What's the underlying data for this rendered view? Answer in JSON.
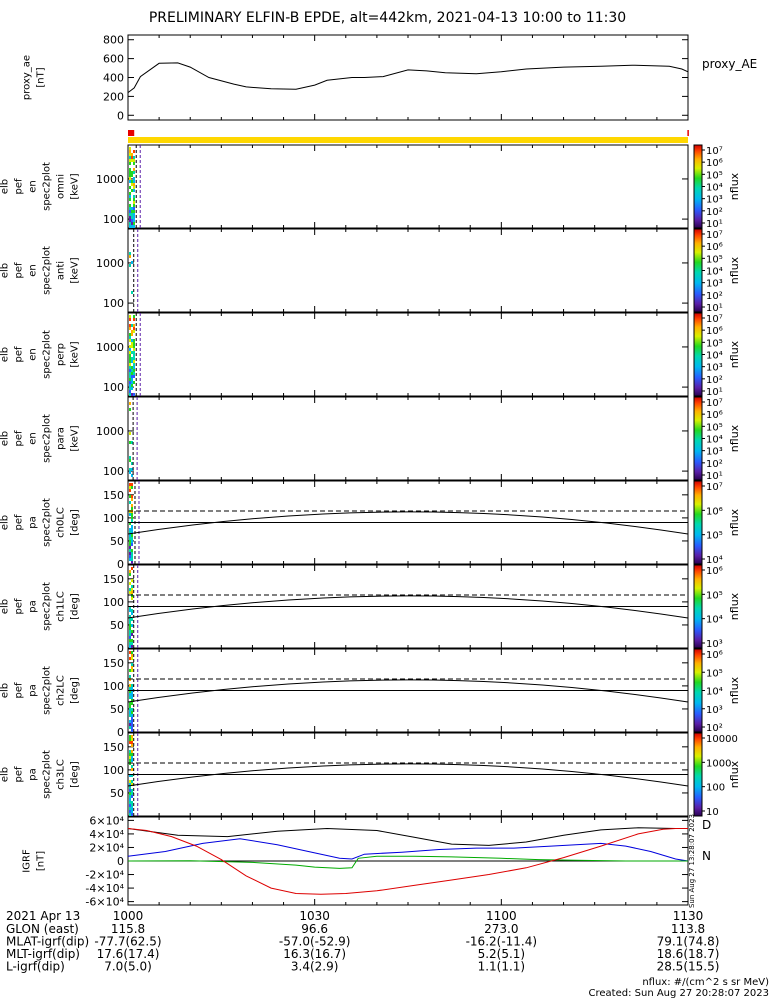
{
  "title": "PRELIMINARY ELFIN-B EPDE, alt=442km, 2021-04-13 10:00 to 11:30",
  "chart_data": [
    {
      "type": "line",
      "panel": "proxy_ae",
      "ylabel": [
        "proxy_ae",
        "[nT]"
      ],
      "legend": "proxy_AE",
      "ylim": [
        -50,
        850
      ],
      "yticks": [
        0,
        200,
        400,
        600,
        800
      ],
      "x": [
        0,
        1,
        2,
        5,
        8,
        10,
        13,
        17,
        19,
        23,
        27,
        30,
        32,
        36,
        38,
        41,
        45,
        48,
        51,
        56,
        60,
        64,
        70,
        76,
        81,
        87,
        89,
        90
      ],
      "y": [
        240,
        290,
        410,
        550,
        555,
        510,
        400,
        330,
        300,
        280,
        275,
        320,
        370,
        400,
        400,
        410,
        480,
        470,
        450,
        440,
        460,
        490,
        510,
        520,
        530,
        520,
        490,
        460
      ],
      "xrange": [
        0,
        90
      ]
    },
    {
      "type": "bar",
      "panel": "status-bar",
      "segments": [
        {
          "start": 0,
          "end": 90,
          "color": "#ffd700"
        },
        {
          "start": 0,
          "end": 1.0,
          "color": "#e60000"
        },
        {
          "start": 89.9,
          "end": 90,
          "color": "#e60000"
        }
      ]
    },
    {
      "type": "heatmap",
      "panel": "omni",
      "ylabel": [
        "elb",
        "pef",
        "en",
        "spec2plot",
        "omni",
        "[keV]"
      ],
      "ylog": true,
      "ylim": [
        60,
        7000
      ],
      "yticks": [
        100,
        1000
      ],
      "colorbar": {
        "label": "nflux",
        "ticks": [
          "10⁷",
          "10⁶",
          "10⁵",
          "10⁴",
          "10³",
          "10²",
          "10¹"
        ]
      },
      "xrange": [
        0,
        1.0
      ]
    },
    {
      "type": "heatmap",
      "panel": "anti",
      "ylabel": [
        "elb",
        "pef",
        "en",
        "spec2plot",
        "anti",
        "[keV]"
      ],
      "ylog": true,
      "ylim": [
        60,
        7000
      ],
      "yticks": [
        100,
        1000
      ],
      "colorbar": {
        "label": "nflux",
        "ticks": [
          "10⁷",
          "10⁶",
          "10⁵",
          "10⁴",
          "10³",
          "10²",
          "10¹"
        ]
      },
      "xrange": [
        0,
        0.6
      ]
    },
    {
      "type": "heatmap",
      "panel": "perp",
      "ylabel": [
        "elb",
        "pef",
        "en",
        "spec2plot",
        "perp",
        "[keV]"
      ],
      "ylog": true,
      "ylim": [
        60,
        7000
      ],
      "yticks": [
        100,
        1000
      ],
      "colorbar": {
        "label": "nflux",
        "ticks": [
          "10⁷",
          "10⁶",
          "10⁵",
          "10⁴",
          "10³",
          "10²",
          "10¹"
        ]
      },
      "xrange": [
        0,
        1.0
      ]
    },
    {
      "type": "heatmap",
      "panel": "para",
      "ylabel": [
        "elb",
        "pef",
        "en",
        "spec2plot",
        "para",
        "[keV]"
      ],
      "ylog": true,
      "ylim": [
        60,
        7000
      ],
      "yticks": [
        100,
        1000
      ],
      "colorbar": {
        "label": "nflux",
        "ticks": [
          "10⁷",
          "10⁶",
          "10⁵",
          "10⁴",
          "10³",
          "10²",
          "10¹"
        ]
      },
      "xrange": [
        0,
        0.5
      ]
    },
    {
      "type": "heatmap",
      "panel": "ch0LC",
      "ylabel": [
        "elb",
        "pef",
        "pa",
        "spec2plot",
        "ch0LC",
        "[deg]"
      ],
      "ylim": [
        0,
        180
      ],
      "yticks": [
        0,
        50,
        100,
        150
      ],
      "colorbar": {
        "label": "nflux",
        "ticks": [
          "10⁷",
          "10⁶",
          "10⁵",
          "10⁴"
        ]
      },
      "xrange": [
        0,
        0.8
      ],
      "lines": {
        "solid_a": [
          90,
          90
        ],
        "dashed": [
          115,
          115
        ],
        "curve": [
          65,
          113,
          65
        ]
      }
    },
    {
      "type": "heatmap",
      "panel": "ch1LC",
      "ylabel": [
        "elb",
        "pef",
        "pa",
        "spec2plot",
        "ch1LC",
        "[deg]"
      ],
      "ylim": [
        0,
        180
      ],
      "yticks": [
        0,
        50,
        100,
        150
      ],
      "colorbar": {
        "label": "nflux",
        "ticks": [
          "10⁶",
          "10⁵",
          "10⁴",
          "10³"
        ]
      },
      "xrange": [
        0,
        0.6
      ],
      "lines": {
        "solid_a": [
          90,
          90
        ],
        "dashed": [
          115,
          115
        ],
        "curve": [
          65,
          113,
          65
        ]
      }
    },
    {
      "type": "heatmap",
      "panel": "ch2LC",
      "ylabel": [
        "elb",
        "pef",
        "pa",
        "spec2plot",
        "ch2LC",
        "[deg]"
      ],
      "ylim": [
        0,
        180
      ],
      "yticks": [
        0,
        50,
        100,
        150
      ],
      "colorbar": {
        "label": "nflux",
        "ticks": [
          "10⁶",
          "10⁵",
          "10⁴",
          "10³",
          "10²"
        ]
      },
      "xrange": [
        0,
        0.6
      ],
      "lines": {
        "solid_a": [
          90,
          90
        ],
        "dashed": [
          115,
          115
        ],
        "curve": [
          65,
          113,
          65
        ]
      }
    },
    {
      "type": "heatmap",
      "panel": "ch3LC",
      "ylabel": [
        "elb",
        "pef",
        "pa",
        "spec2plot",
        "ch3LC",
        "[deg]"
      ],
      "ylim": [
        0,
        180
      ],
      "yticks": [
        50,
        100,
        150
      ],
      "colorbar": {
        "label": "nflux",
        "ticks": [
          "10000",
          "1000",
          "100",
          "10"
        ]
      },
      "xrange": [
        0,
        0.6
      ],
      "lines": {
        "solid_a": [
          90,
          90
        ],
        "dashed": [
          115,
          115
        ],
        "curve": [
          65,
          113,
          65
        ]
      }
    },
    {
      "type": "line",
      "panel": "IGRF",
      "ylabel": [
        "IGRF",
        "[nT]"
      ],
      "ylim": [
        -65000,
        65000
      ],
      "yticks": [
        "-6×10⁴",
        "-4×10⁴",
        "-2×10⁴",
        "0",
        "2×10⁴",
        "4×10⁴",
        "6×10⁴"
      ],
      "ytick_values": [
        -60000,
        -40000,
        -20000,
        0,
        20000,
        40000,
        60000
      ],
      "legend": [
        "D",
        "N"
      ],
      "side_note": "Sun Aug 27 13:28:07 2023",
      "series": [
        {
          "color": "#000000",
          "x": [
            0,
            8,
            16,
            24,
            32,
            40,
            46,
            52,
            58,
            64,
            70,
            76,
            82,
            88,
            90
          ],
          "y": [
            48000,
            38000,
            36000,
            44000,
            48000,
            45000,
            35000,
            25000,
            23000,
            28000,
            38000,
            46000,
            49000,
            48000,
            48000
          ]
        },
        {
          "color": "#0000dd",
          "x": [
            0,
            6,
            12,
            18,
            24,
            30,
            34,
            36,
            38,
            44,
            50,
            56,
            62,
            68,
            72,
            76,
            80,
            84,
            88,
            90
          ],
          "y": [
            7000,
            14000,
            26000,
            33000,
            24000,
            12000,
            4000,
            3000,
            10000,
            13000,
            17000,
            19000,
            19000,
            22000,
            24000,
            26000,
            22000,
            14000,
            3000,
            0
          ]
        },
        {
          "color": "#00aa00",
          "x": [
            0,
            10,
            20,
            27,
            30,
            34,
            36,
            37,
            40,
            46,
            52,
            60,
            66,
            72,
            80,
            88,
            90
          ],
          "y": [
            0,
            500,
            -2000,
            -6000,
            -9000,
            -11000,
            -10000,
            4000,
            7000,
            7000,
            6000,
            4000,
            2000,
            1000,
            0,
            0,
            0
          ]
        },
        {
          "color": "#dd0000",
          "x": [
            0,
            3,
            7,
            11,
            15,
            19,
            23,
            27,
            31,
            35,
            40,
            46,
            52,
            58,
            64,
            70,
            76,
            82,
            86,
            88,
            90
          ],
          "y": [
            48000,
            45000,
            36000,
            22000,
            2000,
            -22000,
            -40000,
            -48000,
            -49000,
            -48000,
            -44000,
            -36000,
            -28000,
            -20000,
            -10000,
            5000,
            22000,
            40000,
            47000,
            48000,
            48000
          ]
        }
      ]
    }
  ],
  "xaxis": {
    "ticks": [
      {
        "x": 0,
        "label": "1000"
      },
      {
        "x": 30,
        "label": "1030"
      },
      {
        "x": 60,
        "label": "1100"
      },
      {
        "x": 90,
        "label": "1130"
      }
    ],
    "date": "2021 Apr 13",
    "rows": [
      {
        "label": "GLON (east)",
        "values": [
          "115.8",
          "96.6",
          "273.0",
          "113.8"
        ]
      },
      {
        "label": "MLAT-igrf(dip)",
        "values": [
          "-77.7(62.5)",
          "-57.0(-52.9)",
          "-16.2(-11.4)",
          "79.1(74.8)"
        ]
      },
      {
        "label": "MLT-igrf(dip)",
        "values": [
          "17.6(17.4)",
          "16.3(16.7)",
          "5.2(5.1)",
          "18.6(18.7)"
        ]
      },
      {
        "label": "L-igrf(dip)",
        "values": [
          "7.0(5.0)",
          "3.4(2.9)",
          "1.1(1.1)",
          "28.5(15.5)"
        ]
      }
    ]
  },
  "footer": {
    "units": "nflux: #/(cm^2 s sr MeV)",
    "created": "Created: Sun Aug 27 20:28:07 2023"
  }
}
